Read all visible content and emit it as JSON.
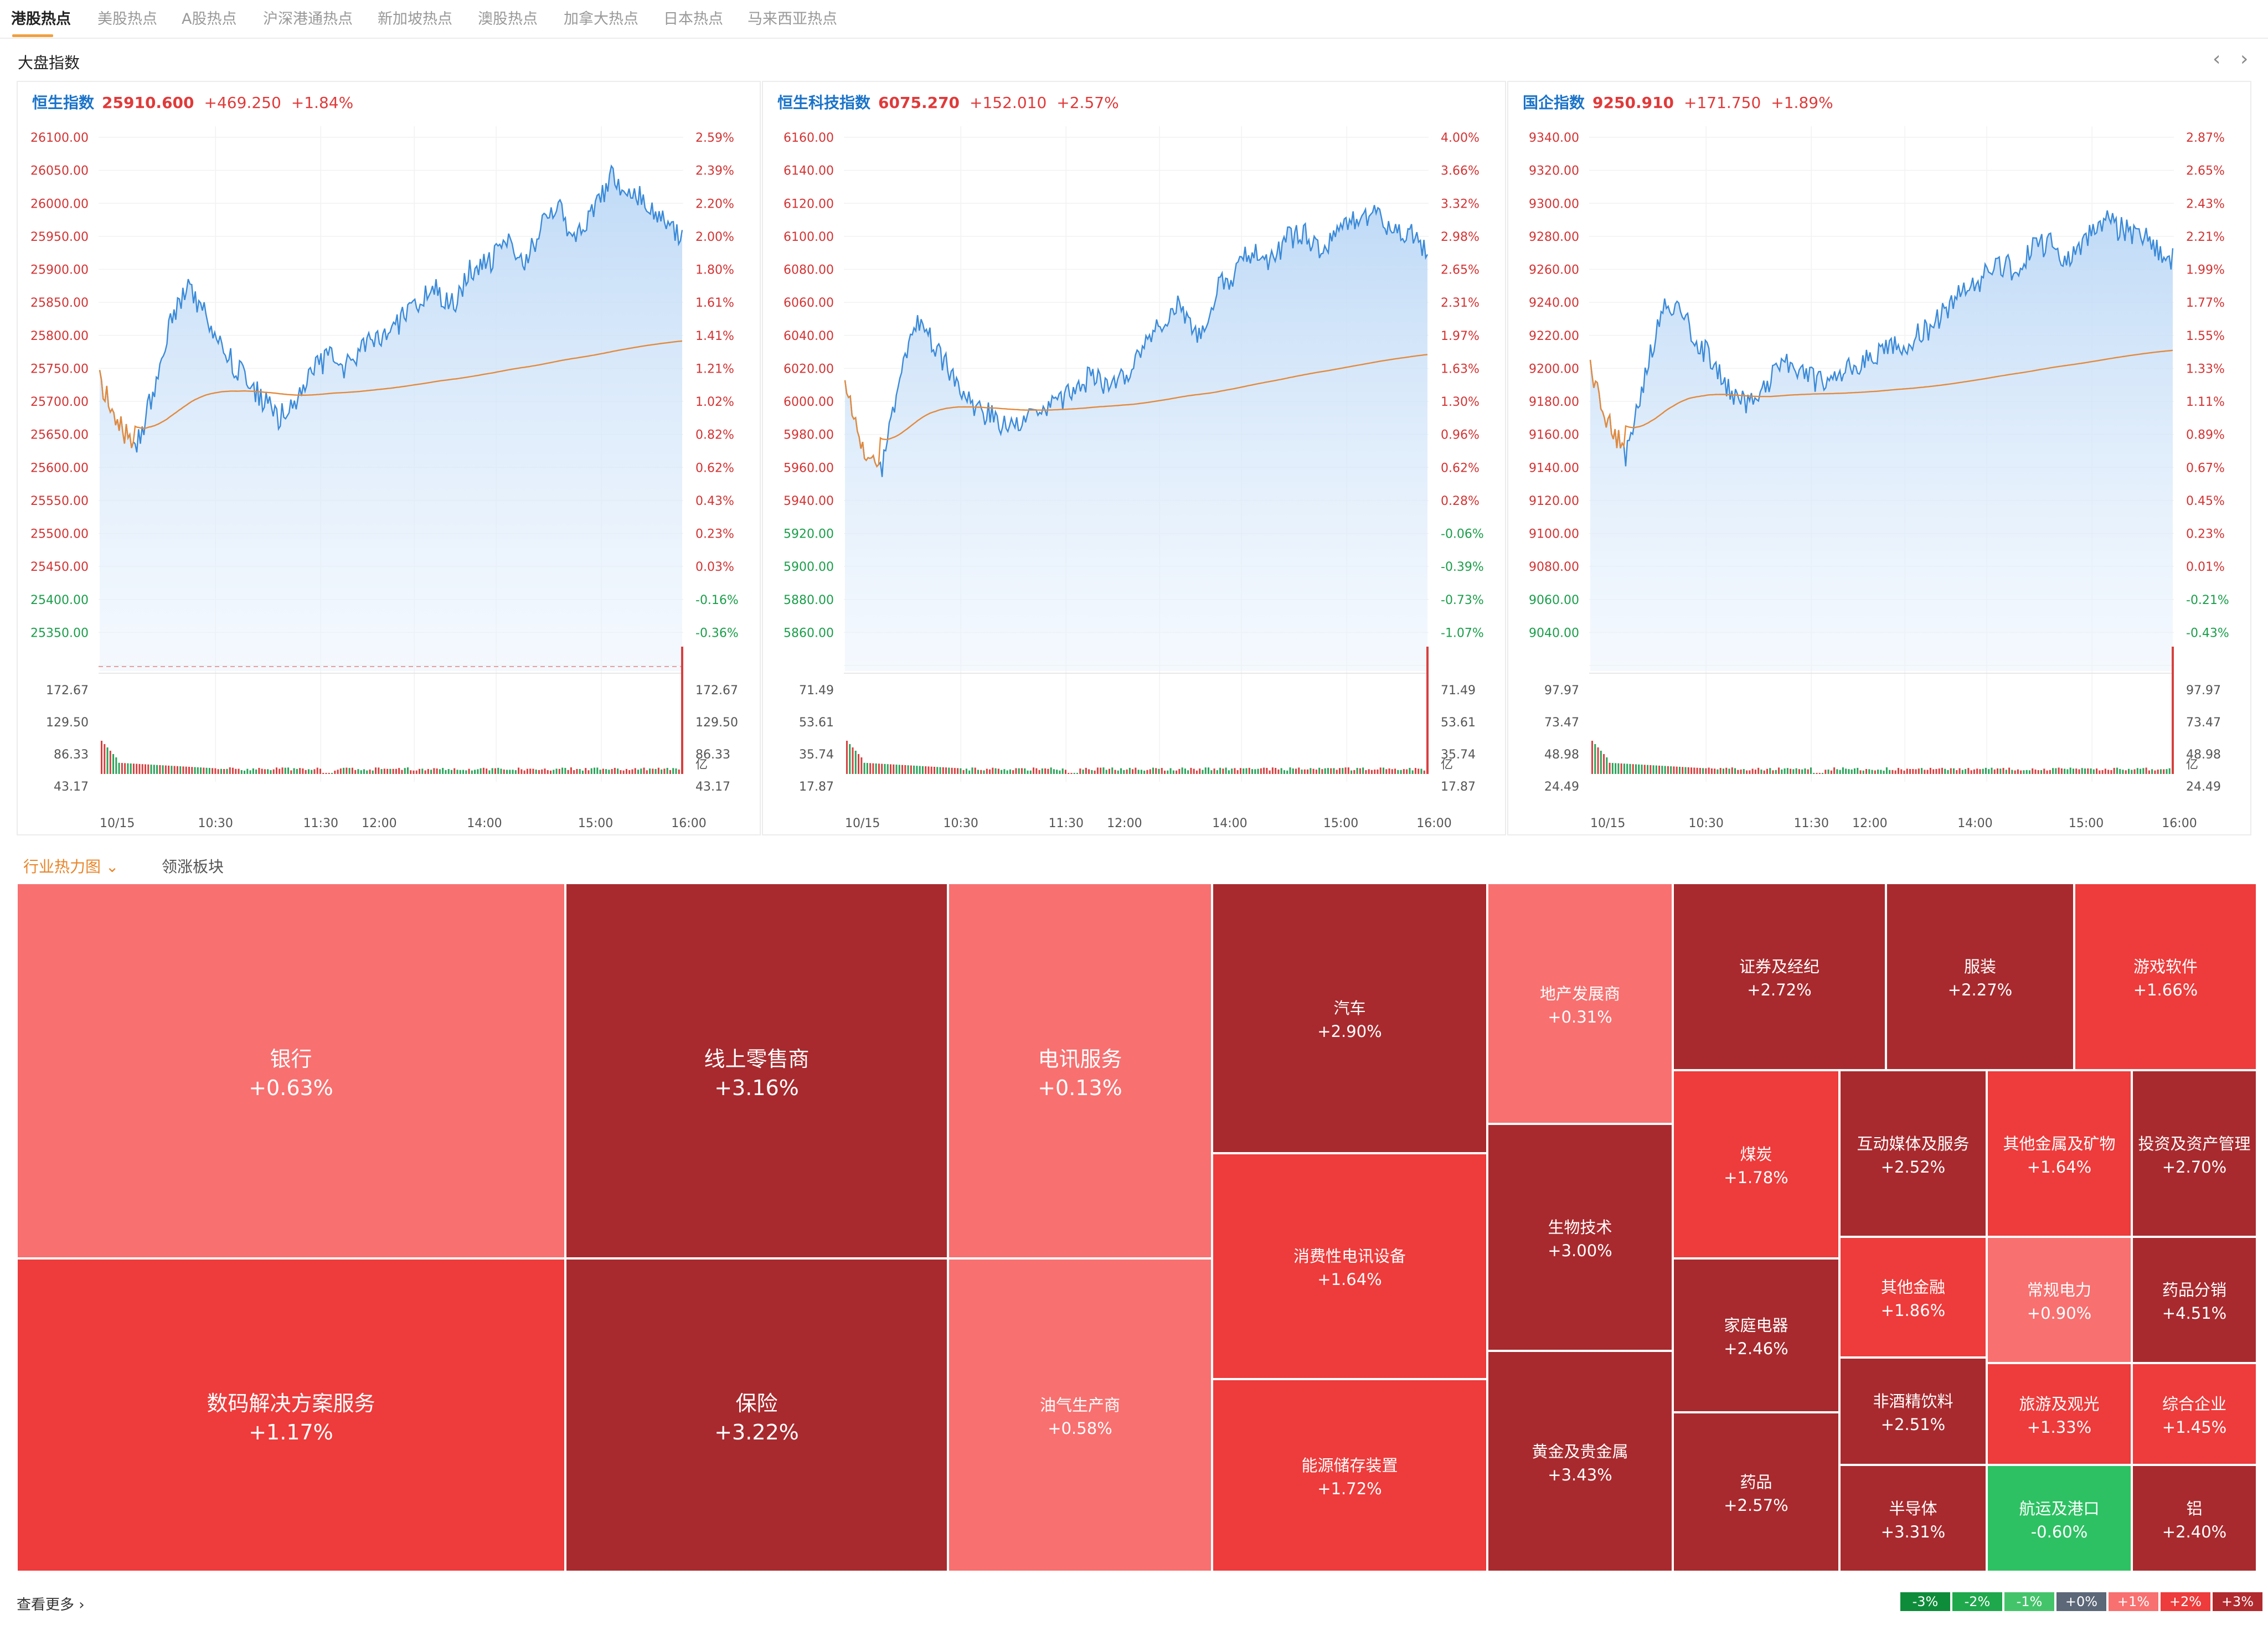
{
  "tabs": [
    "港股热点",
    "美股热点",
    "A股热点",
    "沪深港通热点",
    "新加坡热点",
    "澳股热点",
    "加拿大热点",
    "日本热点",
    "马来西亚热点"
  ],
  "section_title": "大盘指数",
  "nav": {
    "prev": "‹",
    "next": "›"
  },
  "panels": [
    {
      "name": "恒生指数",
      "value": "25910.600",
      "change": "+469.250",
      "pct": "+1.84%",
      "price_left": [
        "26100.00",
        "26050.00",
        "26000.00",
        "25950.00",
        "25900.00",
        "25850.00",
        "25800.00",
        "25750.00",
        "25700.00",
        "25650.00",
        "25600.00",
        "25550.00",
        "25500.00",
        "25450.00",
        "25400.00",
        "25350.00"
      ],
      "pct_right": [
        "2.59%",
        "2.39%",
        "2.20%",
        "2.00%",
        "1.80%",
        "1.61%",
        "1.41%",
        "1.21%",
        "1.02%",
        "0.82%",
        "0.62%",
        "0.43%",
        "0.23%",
        "0.03%",
        "-0.16%",
        "-0.36%"
      ],
      "neg_from": 14,
      "vol_labels": [
        "172.67",
        "129.50",
        "86.33",
        "43.17"
      ],
      "vol_unit": "亿",
      "time_labels": [
        "10/15",
        "10:30",
        "11:30",
        "12:00",
        "14:00",
        "15:00",
        "16:00"
      ]
    },
    {
      "name": "恒生科技指数",
      "value": "6075.270",
      "change": "+152.010",
      "pct": "+2.57%",
      "price_left": [
        "6160.00",
        "6140.00",
        "6120.00",
        "6100.00",
        "6080.00",
        "6060.00",
        "6040.00",
        "6020.00",
        "6000.00",
        "5980.00",
        "5960.00",
        "5940.00",
        "5920.00",
        "5900.00",
        "5880.00",
        "5860.00"
      ],
      "pct_right": [
        "4.00%",
        "3.66%",
        "3.32%",
        "2.98%",
        "2.65%",
        "2.31%",
        "1.97%",
        "1.63%",
        "1.30%",
        "0.96%",
        "0.62%",
        "0.28%",
        "-0.06%",
        "-0.39%",
        "-0.73%",
        "-1.07%"
      ],
      "neg_from": 12,
      "vol_labels": [
        "71.49",
        "53.61",
        "35.74",
        "17.87"
      ],
      "vol_unit": "亿",
      "time_labels": [
        "10/15",
        "10:30",
        "11:30",
        "12:00",
        "14:00",
        "15:00",
        "16:00"
      ]
    },
    {
      "name": "国企指数",
      "value": "9250.910",
      "change": "+171.750",
      "pct": "+1.89%",
      "price_left": [
        "9340.00",
        "9320.00",
        "9300.00",
        "9280.00",
        "9260.00",
        "9240.00",
        "9220.00",
        "9200.00",
        "9180.00",
        "9160.00",
        "9140.00",
        "9120.00",
        "9100.00",
        "9080.00",
        "9060.00",
        "9040.00"
      ],
      "pct_right": [
        "2.87%",
        "2.65%",
        "2.43%",
        "2.21%",
        "1.99%",
        "1.77%",
        "1.55%",
        "1.33%",
        "1.11%",
        "0.89%",
        "0.67%",
        "0.45%",
        "0.23%",
        "0.01%",
        "-0.21%",
        "-0.43%"
      ],
      "neg_from": 14,
      "vol_labels": [
        "97.97",
        "73.47",
        "48.98",
        "24.49"
      ],
      "vol_unit": "亿",
      "time_labels": [
        "10/15",
        "10:30",
        "11:30",
        "12:00",
        "14:00",
        "15:00",
        "16:00"
      ]
    }
  ],
  "heatmap": {
    "tabs": [
      "行业热力图 ⌄",
      "领涨板块"
    ],
    "cells": [
      {
        "name": "银行",
        "pct": "+0.63%",
        "color": "#f87070"
      },
      {
        "name": "数码解决方案服务",
        "pct": "+1.17%",
        "color": "#ee3b3b"
      },
      {
        "name": "线上零售商",
        "pct": "+3.16%",
        "color": "#a82a2e"
      },
      {
        "name": "保险",
        "pct": "+3.22%",
        "color": "#a82a2e"
      },
      {
        "name": "电讯服务",
        "pct": "+0.13%",
        "color": "#f87070"
      },
      {
        "name": "油气生产商",
        "pct": "+0.58%",
        "color": "#f87070"
      },
      {
        "name": "汽车",
        "pct": "+2.90%",
        "color": "#a82a2e"
      },
      {
        "name": "消费性电讯设备",
        "pct": "+1.64%",
        "color": "#ee3b3b"
      },
      {
        "name": "能源储存装置",
        "pct": "+1.72%",
        "color": "#ee3b3b"
      },
      {
        "name": "地产发展商",
        "pct": "+0.31%",
        "color": "#f87070"
      },
      {
        "name": "生物技术",
        "pct": "+3.00%",
        "color": "#a82a2e"
      },
      {
        "name": "黄金及贵金属",
        "pct": "+3.43%",
        "color": "#a82a2e"
      },
      {
        "name": "药品",
        "pct": "+2.57%",
        "color": "#a82a2e"
      },
      {
        "name": "服装",
        "pct": "+2.27%",
        "color": "#a82a2e"
      },
      {
        "name": "互动媒体及服务",
        "pct": "+2.52%",
        "color": "#a82a2e"
      },
      {
        "name": "证券及经纪",
        "pct": "+2.72%",
        "color": "#a82a2e"
      },
      {
        "name": "煤炭",
        "pct": "+1.78%",
        "color": "#ee3b3b"
      },
      {
        "name": "家庭电器",
        "pct": "+2.46%",
        "color": "#a82a2e"
      },
      {
        "name": "其他金融",
        "pct": "+1.86%",
        "color": "#ee3b3b"
      },
      {
        "name": "非酒精饮料",
        "pct": "+2.51%",
        "color": "#a82a2e"
      },
      {
        "name": "半导体",
        "pct": "+3.31%",
        "color": "#a82a2e"
      },
      {
        "name": "游戏软件",
        "pct": "+1.66%",
        "color": "#ee3b3b"
      },
      {
        "name": "其他金属及矿物",
        "pct": "+1.64%",
        "color": "#ee3b3b"
      },
      {
        "name": "投资及资产管理",
        "pct": "+2.70%",
        "color": "#a82a2e"
      },
      {
        "name": "常规电力",
        "pct": "+0.90%",
        "color": "#f87070"
      },
      {
        "name": "药品分销",
        "pct": "+4.51%",
        "color": "#a82a2e"
      },
      {
        "name": "旅游及观光",
        "pct": "+1.33%",
        "color": "#ee3b3b"
      },
      {
        "name": "综合企业",
        "pct": "+1.45%",
        "color": "#ee3b3b"
      },
      {
        "name": "航运及港口",
        "pct": "-0.60%",
        "color": "#2dc163"
      },
      {
        "name": "铝",
        "pct": "+2.40%",
        "color": "#a82a2e"
      }
    ]
  },
  "footer": {
    "more": "查看更多 ›",
    "legend": [
      {
        "label": "-3%",
        "color": "#0e8c3a"
      },
      {
        "label": "-2%",
        "color": "#1fa84c"
      },
      {
        "label": "-1%",
        "color": "#44c46a"
      },
      {
        "label": "+0%",
        "color": "#5c6778"
      },
      {
        "label": "+1%",
        "color": "#f87070"
      },
      {
        "label": "+2%",
        "color": "#ee3b3b"
      },
      {
        "label": "+3%",
        "color": "#b12a2e"
      }
    ]
  }
}
